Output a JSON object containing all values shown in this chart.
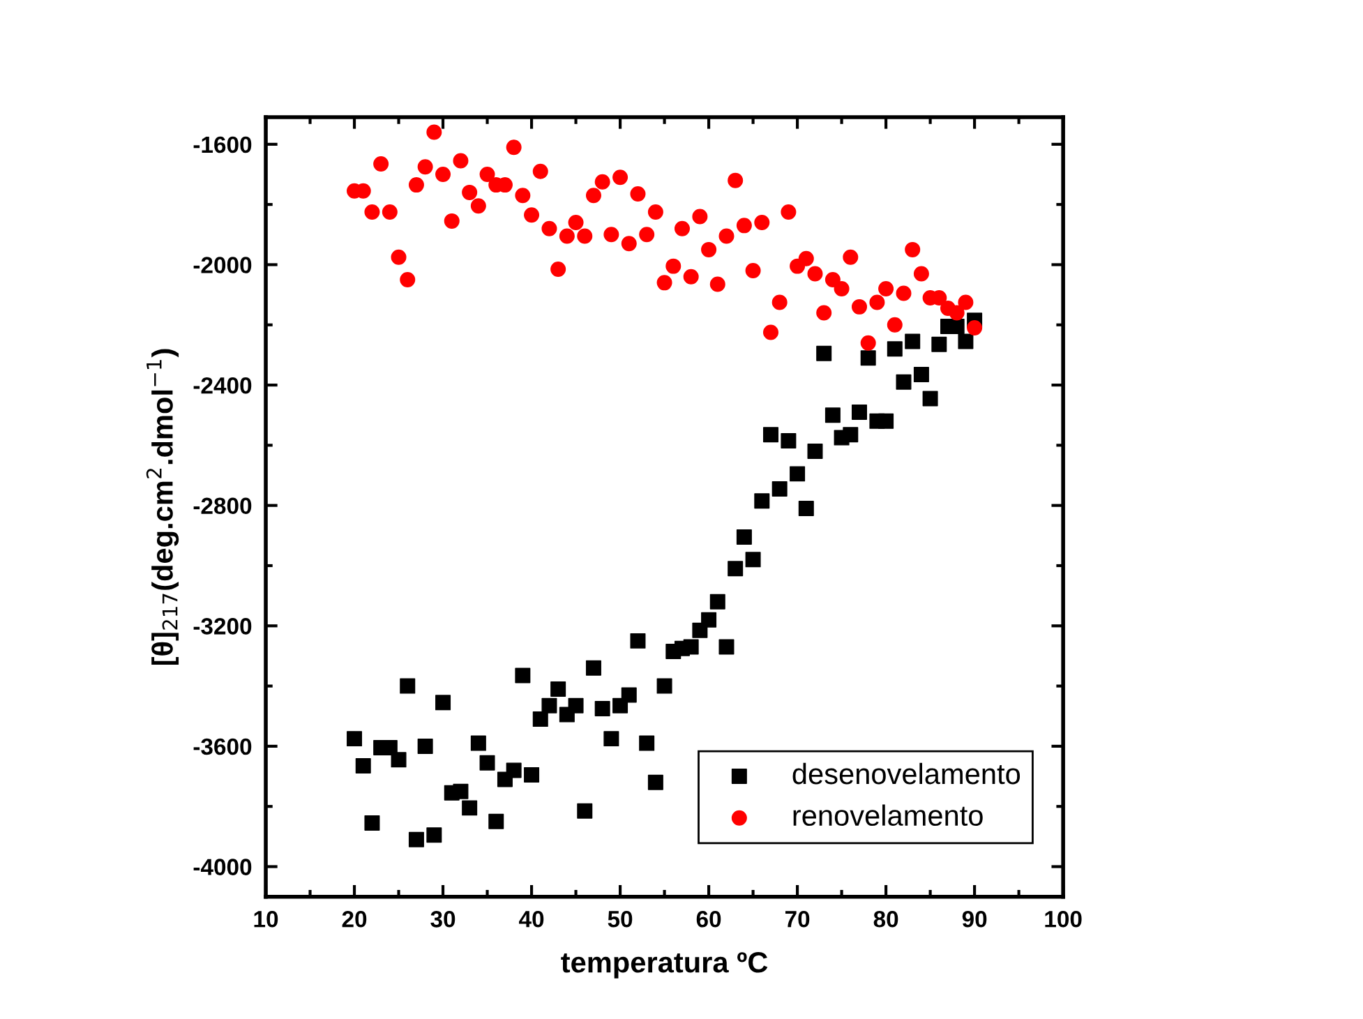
{
  "chart_data": {
    "type": "scatter",
    "xlabel": "temperatura ºC",
    "ylabel": "[θ]$_{217}$(deg.cm$^{2}$.dmol$^{−1}$)",
    "x": [
      20,
      21,
      22,
      23,
      24,
      25,
      26,
      27,
      28,
      29,
      30,
      31,
      32,
      33,
      34,
      35,
      36,
      37,
      38,
      39,
      40,
      41,
      42,
      43,
      44,
      45,
      46,
      47,
      48,
      49,
      50,
      51,
      52,
      53,
      54,
      55,
      56,
      57,
      58,
      59,
      60,
      61,
      62,
      63,
      64,
      65,
      66,
      67,
      68,
      69,
      70,
      71,
      72,
      73,
      74,
      75,
      76,
      77,
      78,
      79,
      80,
      81,
      82,
      83,
      84,
      85,
      86,
      87,
      88,
      89,
      90
    ],
    "series": [
      {
        "name": "desenovelamento",
        "color": "#000000",
        "marker": "square",
        "values": [
          -3575,
          -3665,
          -3855,
          -3605,
          -3605,
          -3645,
          -3400,
          -3910,
          -3600,
          -3895,
          -3455,
          -3755,
          -3750,
          -3805,
          -3590,
          -3655,
          -3850,
          -3710,
          -3680,
          -3365,
          -3695,
          -3510,
          -3465,
          -3410,
          -3495,
          -3465,
          -3815,
          -3340,
          -3475,
          -3575,
          -3465,
          -3430,
          -3250,
          -3590,
          -3720,
          -3400,
          -3285,
          -3275,
          -3270,
          -3215,
          -3180,
          -3120,
          -3270,
          -3010,
          -2905,
          -2980,
          -2785,
          -2565,
          -2745,
          -2585,
          -2695,
          -2810,
          -2620,
          -2295,
          -2500,
          -2575,
          -2565,
          -2490,
          -2310,
          -2520,
          -2520,
          -2280,
          -2390,
          -2255,
          -2365,
          -2445,
          -2265,
          -2205,
          -2205,
          -2255,
          -2185
        ]
      },
      {
        "name": "renovelamento",
        "color": "#ff0000",
        "marker": "circle",
        "values": [
          -1755,
          -1755,
          -1825,
          -1665,
          -1825,
          -1975,
          -2050,
          -1735,
          -1675,
          -1560,
          -1700,
          -1855,
          -1655,
          -1760,
          -1805,
          -1700,
          -1735,
          -1735,
          -1610,
          -1770,
          -1835,
          -1690,
          -1880,
          -2015,
          -1905,
          -1860,
          -1905,
          -1770,
          -1725,
          -1900,
          -1710,
          -1930,
          -1765,
          -1900,
          -1825,
          -2060,
          -2005,
          -1880,
          -2040,
          -1840,
          -1950,
          -2065,
          -1905,
          -1720,
          -1870,
          -2020,
          -1860,
          -2225,
          -2125,
          -1825,
          -2005,
          -1980,
          -2030,
          -2160,
          -2050,
          -2080,
          -1975,
          -2140,
          -2260,
          -2125,
          -2080,
          -2200,
          -2095,
          -1950,
          -2030,
          -2110,
          -2110,
          -2145,
          -2160,
          -2125,
          -2210
        ]
      }
    ],
    "xlim": [
      10,
      100
    ],
    "xticks": [
      10,
      20,
      30,
      40,
      50,
      60,
      70,
      80,
      90,
      100
    ],
    "ylim": [
      -4100,
      -1510
    ],
    "yticks": [
      -4000,
      -3600,
      -3200,
      -2800,
      -2400,
      -2000,
      -1600
    ],
    "grid": false,
    "legend": "bottom right"
  }
}
